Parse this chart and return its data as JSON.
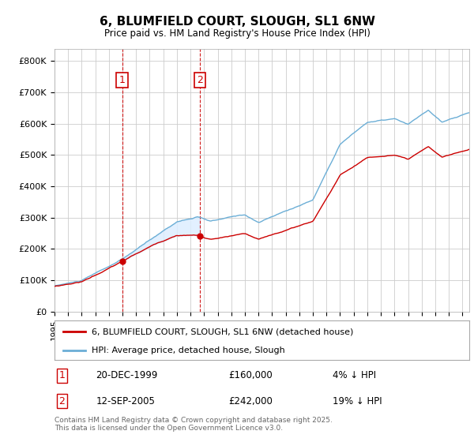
{
  "title": "6, BLUMFIELD COURT, SLOUGH, SL1 6NW",
  "subtitle": "Price paid vs. HM Land Registry's House Price Index (HPI)",
  "ylabel_ticks": [
    "£0",
    "£100K",
    "£200K",
    "£300K",
    "£400K",
    "£500K",
    "£600K",
    "£700K",
    "£800K"
  ],
  "ytick_values": [
    0,
    100000,
    200000,
    300000,
    400000,
    500000,
    600000,
    700000,
    800000
  ],
  "ylim": [
    0,
    840000
  ],
  "xlim_start": 1995.0,
  "xlim_end": 2025.5,
  "purchase1_year": 1999.97,
  "purchase1_price": 160000,
  "purchase1_label": "1",
  "purchase2_year": 2005.71,
  "purchase2_price": 242000,
  "purchase2_label": "2",
  "hpi_color": "#6baed6",
  "price_color": "#cc0000",
  "fill_color": "#ddeeff",
  "grid_color": "#cccccc",
  "bg_color": "#ffffff",
  "legend_line1": "6, BLUMFIELD COURT, SLOUGH, SL1 6NW (detached house)",
  "legend_line2": "HPI: Average price, detached house, Slough",
  "annotation1_date": "20-DEC-1999",
  "annotation1_price": "£160,000",
  "annotation1_hpi": "4% ↓ HPI",
  "annotation2_date": "12-SEP-2005",
  "annotation2_price": "£242,000",
  "annotation2_hpi": "19% ↓ HPI",
  "footer": "Contains HM Land Registry data © Crown copyright and database right 2025.\nThis data is licensed under the Open Government Licence v3.0."
}
